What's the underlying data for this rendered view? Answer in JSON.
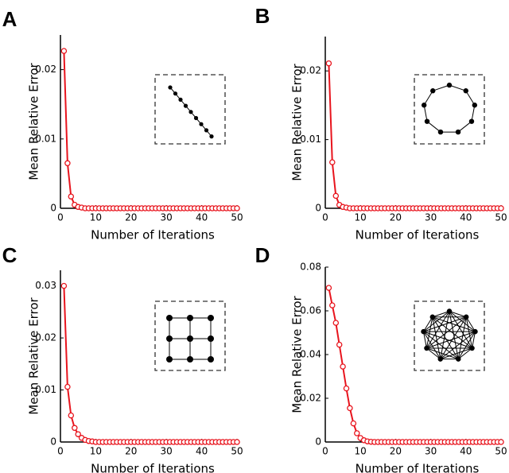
{
  "chart_data": [
    {
      "type": "line",
      "panel_label": "A",
      "xlabel": "Number of Iterations",
      "ylabel": "Mean Relative Error",
      "xlim": [
        0,
        50
      ],
      "ylim": [
        0,
        0.025
      ],
      "x_ticks": [
        0,
        10,
        20,
        30,
        40,
        50
      ],
      "x_tick_labels": [
        "0",
        "10",
        "20",
        "30",
        "40",
        "50"
      ],
      "y_ticks": [
        0,
        0.01,
        0.02
      ],
      "y_tick_labels": [
        "0",
        "0.01",
        "0.02"
      ],
      "line_color": "#e8141d",
      "marker": "open-circle",
      "inset_topology": "line (chain) graph, 9 nodes",
      "series": [
        {
          "x": [
            1,
            2,
            3,
            4,
            5,
            6,
            7,
            8,
            9,
            10,
            11,
            12,
            13,
            14,
            15,
            16,
            17,
            18,
            19,
            20,
            21,
            22,
            23,
            24,
            25,
            26,
            27,
            28,
            29,
            30,
            31,
            32,
            33,
            34,
            35,
            36,
            37,
            38,
            39,
            40,
            41,
            42,
            43,
            44,
            45,
            46,
            47,
            48,
            49,
            50
          ],
          "values": [
            0.0227,
            0.0065,
            0.0017,
            0.0005,
            0.0002,
            0.0001,
            0,
            0,
            0,
            0,
            0,
            0,
            0,
            0,
            0,
            0,
            0,
            0,
            0,
            0,
            0,
            0,
            0,
            0,
            0,
            0,
            0,
            0,
            0,
            0,
            0,
            0,
            0,
            0,
            0,
            0,
            0,
            0,
            0,
            0,
            0,
            0,
            0,
            0,
            0,
            0,
            0,
            0,
            0,
            0
          ]
        }
      ]
    },
    {
      "type": "line",
      "panel_label": "B",
      "xlabel": "Number of Iterations",
      "ylabel": "Mean Relative Error",
      "xlim": [
        0,
        50
      ],
      "ylim": [
        0,
        0.025
      ],
      "x_ticks": [
        0,
        10,
        20,
        30,
        40,
        50
      ],
      "x_tick_labels": [
        "0",
        "10",
        "20",
        "30",
        "40",
        "50"
      ],
      "y_ticks": [
        0,
        0.01,
        0.02
      ],
      "y_tick_labels": [
        "0",
        "0.01",
        "0.02"
      ],
      "line_color": "#e8141d",
      "marker": "open-circle",
      "inset_topology": "ring (cycle) graph, 9 nodes",
      "series": [
        {
          "x": [
            1,
            2,
            3,
            4,
            5,
            6,
            7,
            8,
            9,
            10,
            11,
            12,
            13,
            14,
            15,
            16,
            17,
            18,
            19,
            20,
            21,
            22,
            23,
            24,
            25,
            26,
            27,
            28,
            29,
            30,
            31,
            32,
            33,
            34,
            35,
            36,
            37,
            38,
            39,
            40,
            41,
            42,
            43,
            44,
            45,
            46,
            47,
            48,
            49,
            50
          ],
          "values": [
            0.0211,
            0.0067,
            0.0018,
            0.0005,
            0.0002,
            0.0001,
            0,
            0,
            0,
            0,
            0,
            0,
            0,
            0,
            0,
            0,
            0,
            0,
            0,
            0,
            0,
            0,
            0,
            0,
            0,
            0,
            0,
            0,
            0,
            0,
            0,
            0,
            0,
            0,
            0,
            0,
            0,
            0,
            0,
            0,
            0,
            0,
            0,
            0,
            0,
            0,
            0,
            0,
            0,
            0
          ]
        }
      ]
    },
    {
      "type": "line",
      "panel_label": "C",
      "xlabel": "Number of Iterations",
      "ylabel": "Mean Relative Error",
      "xlim": [
        0,
        50
      ],
      "ylim": [
        0,
        0.033
      ],
      "x_ticks": [
        0,
        10,
        20,
        30,
        40,
        50
      ],
      "x_tick_labels": [
        "0",
        "10",
        "20",
        "30",
        "40",
        "50"
      ],
      "y_ticks": [
        0,
        0.01,
        0.02,
        0.03
      ],
      "y_tick_labels": [
        "0",
        "0.01",
        "0.02",
        "0.03"
      ],
      "line_color": "#e8141d",
      "marker": "open-circle",
      "inset_topology": "3x3 grid graph, 9 nodes",
      "series": [
        {
          "x": [
            1,
            2,
            3,
            4,
            5,
            6,
            7,
            8,
            9,
            10,
            11,
            12,
            13,
            14,
            15,
            16,
            17,
            18,
            19,
            20,
            21,
            22,
            23,
            24,
            25,
            26,
            27,
            28,
            29,
            30,
            31,
            32,
            33,
            34,
            35,
            36,
            37,
            38,
            39,
            40,
            41,
            42,
            43,
            44,
            45,
            46,
            47,
            48,
            49,
            50
          ],
          "values": [
            0.03,
            0.0106,
            0.0051,
            0.0027,
            0.0015,
            0.0008,
            0.0004,
            0.0002,
            0.0001,
            0,
            0,
            0,
            0,
            0,
            0,
            0,
            0,
            0,
            0,
            0,
            0,
            0,
            0,
            0,
            0,
            0,
            0,
            0,
            0,
            0,
            0,
            0,
            0,
            0,
            0,
            0,
            0,
            0,
            0,
            0,
            0,
            0,
            0,
            0,
            0,
            0,
            0,
            0,
            0,
            0
          ]
        }
      ]
    },
    {
      "type": "line",
      "panel_label": "D",
      "xlabel": "Number of Iterations",
      "ylabel": "Mean Relative Error",
      "xlim": [
        0,
        50
      ],
      "ylim": [
        0,
        0.08
      ],
      "x_ticks": [
        0,
        10,
        20,
        30,
        40,
        50
      ],
      "x_tick_labels": [
        "0",
        "10",
        "20",
        "30",
        "40",
        "50"
      ],
      "y_ticks": [
        0,
        0.02,
        0.04,
        0.06,
        0.08
      ],
      "y_tick_labels": [
        "0",
        "0.02",
        "0.04",
        "0.06",
        "0.08"
      ],
      "line_color": "#e8141d",
      "marker": "open-circle",
      "inset_topology": "complete graph, 9 nodes",
      "series": [
        {
          "x": [
            1,
            2,
            3,
            4,
            5,
            6,
            7,
            8,
            9,
            10,
            11,
            12,
            13,
            14,
            15,
            16,
            17,
            18,
            19,
            20,
            21,
            22,
            23,
            24,
            25,
            26,
            27,
            28,
            29,
            30,
            31,
            32,
            33,
            34,
            35,
            36,
            37,
            38,
            39,
            40,
            41,
            42,
            43,
            44,
            45,
            46,
            47,
            48,
            49,
            50
          ],
          "values": [
            0.0705,
            0.0625,
            0.0545,
            0.0445,
            0.0345,
            0.0245,
            0.0155,
            0.0085,
            0.004,
            0.0018,
            0.0008,
            0.0003,
            0.0001,
            0,
            0,
            0,
            0,
            0,
            0,
            0,
            0,
            0,
            0,
            0,
            0,
            0,
            0,
            0,
            0,
            0,
            0,
            0,
            0,
            0,
            0,
            0,
            0,
            0,
            0,
            0,
            0,
            0,
            0,
            0,
            0,
            0,
            0,
            0,
            0,
            0
          ]
        }
      ]
    }
  ]
}
